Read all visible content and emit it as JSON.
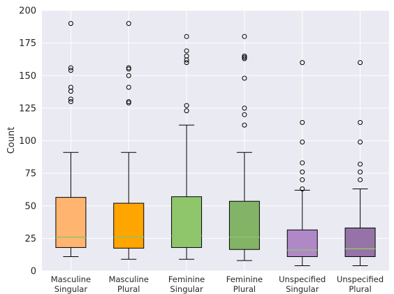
{
  "chart_data": {
    "type": "boxplot",
    "ylabel": "Count",
    "xlabel": "",
    "title": "",
    "ylim": [
      0,
      200
    ],
    "yticks": [
      0,
      25,
      50,
      75,
      100,
      125,
      150,
      175,
      200
    ],
    "grid": true,
    "background": "#eaeaf2",
    "categories": [
      [
        "Masculine",
        "Singular"
      ],
      [
        "Masculine",
        "Plural"
      ],
      [
        "Feminine",
        "Singular"
      ],
      [
        "Feminine",
        "Plural"
      ],
      [
        "Unspecified",
        "Singular"
      ],
      [
        "Unspecified",
        "Plural"
      ]
    ],
    "colors": [
      "#ffb570",
      "#ffa500",
      "#8fc66b",
      "#82b366",
      "#b088c8",
      "#9673a6"
    ],
    "median_color": "#8cc36e",
    "boxes": [
      {
        "whisker_low": 11,
        "q1": 18,
        "median": 26,
        "q3": 56.5,
        "whisker_high": 91,
        "outliers": [
          190,
          156,
          154,
          141,
          138,
          132,
          130
        ]
      },
      {
        "whisker_low": 9,
        "q1": 17.5,
        "median": 26,
        "q3": 52,
        "whisker_high": 91,
        "outliers": [
          190,
          156,
          155,
          150,
          141,
          130,
          129
        ]
      },
      {
        "whisker_low": 9,
        "q1": 18,
        "median": 27,
        "q3": 57,
        "whisker_high": 112,
        "outliers": [
          180,
          169,
          165,
          162,
          160,
          127,
          123
        ]
      },
      {
        "whisker_low": 8,
        "q1": 16.5,
        "median": 26,
        "q3": 53.5,
        "whisker_high": 91,
        "outliers": [
          180,
          165,
          164,
          163,
          148,
          125,
          120,
          112
        ]
      },
      {
        "whisker_low": 4,
        "q1": 11,
        "median": 16,
        "q3": 31.5,
        "whisker_high": 62,
        "outliers": [
          160,
          114,
          99,
          83,
          76,
          70,
          63
        ]
      },
      {
        "whisker_low": 4,
        "q1": 11,
        "median": 17,
        "q3": 33,
        "whisker_high": 63,
        "outliers": [
          160,
          114,
          99,
          82,
          76,
          70
        ]
      }
    ]
  }
}
